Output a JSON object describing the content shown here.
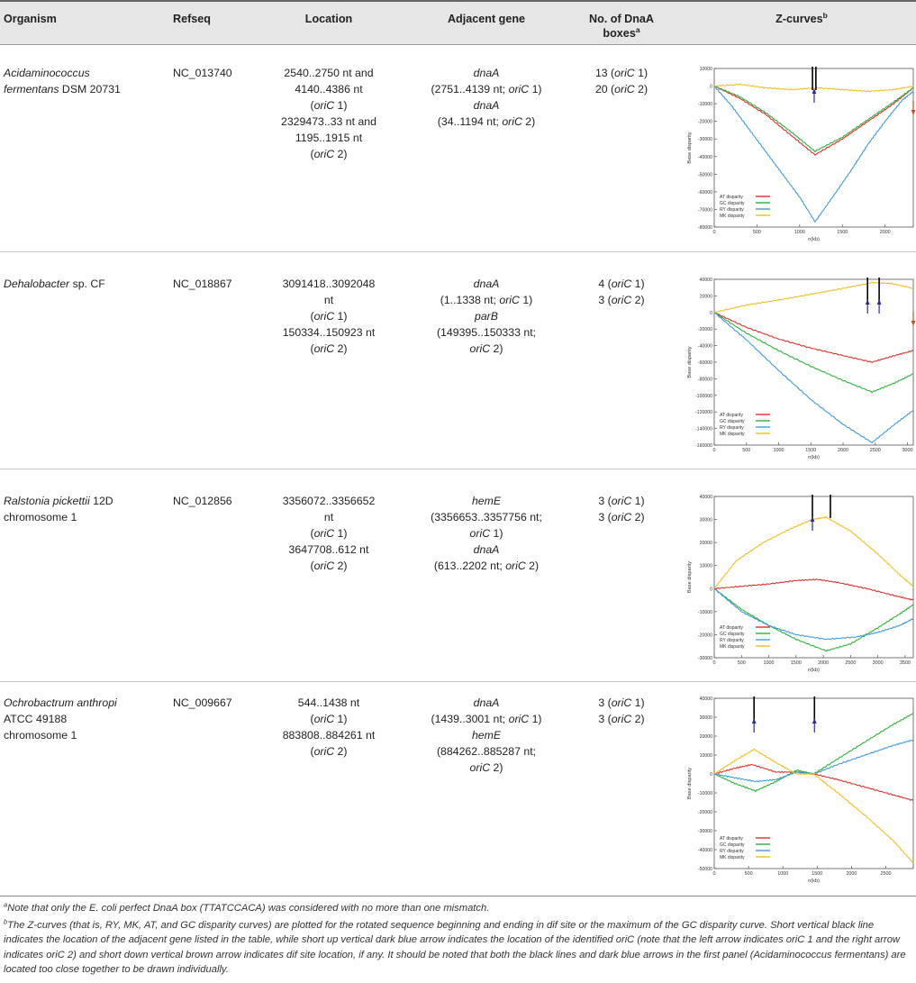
{
  "headers": {
    "organism": "Organism",
    "refseq": "Refseq",
    "location": "Location",
    "adjacent_gene": "Adjacent gene",
    "dnaa_line1": "No. of DnaA",
    "dnaa_line2": "boxes",
    "dnaa_sup": "a",
    "zcurves": "Z-curves",
    "zcurves_sup": "b"
  },
  "rows": [
    {
      "organism": [
        [
          {
            "t": "Acidaminococcus",
            "i": true
          }
        ],
        [
          {
            "t": "fermentans",
            "i": true
          },
          {
            "t": " DSM 20731"
          }
        ]
      ],
      "refseq": "NC_013740",
      "location": [
        [
          {
            "t": "2540..2750 nt and"
          }
        ],
        [
          {
            "t": "4140..4386 nt"
          }
        ],
        [
          {
            "t": "("
          },
          {
            "t": "oriC",
            "i": true
          },
          {
            "t": " 1)"
          }
        ],
        [
          {
            "t": "2329473..33 nt and"
          }
        ],
        [
          {
            "t": "1195..1915 nt"
          }
        ],
        [
          {
            "t": "("
          },
          {
            "t": "oriC",
            "i": true
          },
          {
            "t": " 2)"
          }
        ]
      ],
      "gene": [
        [
          {
            "t": "dnaA",
            "i": true
          }
        ],
        [
          {
            "t": "(2751..4139 nt; "
          },
          {
            "t": "oriC",
            "i": true
          },
          {
            "t": " 1)"
          }
        ],
        [
          {
            "t": "dnaA",
            "i": true
          }
        ],
        [
          {
            "t": "(34..1194 nt; "
          },
          {
            "t": "oriC",
            "i": true
          },
          {
            "t": " 2)"
          }
        ]
      ],
      "boxes": [
        [
          {
            "t": "13 ("
          },
          {
            "t": "oriC",
            "i": true
          },
          {
            "t": " 1)"
          }
        ],
        [
          {
            "t": "20 ("
          },
          {
            "t": "oriC",
            "i": true
          },
          {
            "t": " 2)"
          }
        ]
      ]
    },
    {
      "organism": [
        [
          {
            "t": "Dehalobacter",
            "i": true
          },
          {
            "t": " sp. CF"
          }
        ]
      ],
      "refseq": "NC_018867",
      "location": [
        [
          {
            "t": "3091418..3092048"
          }
        ],
        [
          {
            "t": "nt"
          }
        ],
        [
          {
            "t": "("
          },
          {
            "t": "oriC",
            "i": true
          },
          {
            "t": " 1)"
          }
        ],
        [
          {
            "t": "150334..150923 nt"
          }
        ],
        [
          {
            "t": "("
          },
          {
            "t": "oriC",
            "i": true
          },
          {
            "t": " 2)"
          }
        ]
      ],
      "gene": [
        [
          {
            "t": "dnaA",
            "i": true
          }
        ],
        [
          {
            "t": "(1..1338 nt; "
          },
          {
            "t": "oriC",
            "i": true
          },
          {
            "t": " 1)"
          }
        ],
        [
          {
            "t": "parB",
            "i": true
          }
        ],
        [
          {
            "t": "(149395..150333 nt;"
          }
        ],
        [
          {
            "t": "oriC",
            "i": true
          },
          {
            "t": " 2)"
          }
        ]
      ],
      "boxes": [
        [
          {
            "t": "4 ("
          },
          {
            "t": "oriC",
            "i": true
          },
          {
            "t": " 1)"
          }
        ],
        [
          {
            "t": "3 ("
          },
          {
            "t": "oriC",
            "i": true
          },
          {
            "t": " 2)"
          }
        ]
      ]
    },
    {
      "organism": [
        [
          {
            "t": "Ralstonia pickettii",
            "i": true
          },
          {
            "t": " 12D"
          }
        ],
        [
          {
            "t": "chromosome 1"
          }
        ]
      ],
      "refseq": "NC_012856",
      "location": [
        [
          {
            "t": "3356072..3356652"
          }
        ],
        [
          {
            "t": "nt"
          }
        ],
        [
          {
            "t": "("
          },
          {
            "t": "oriC",
            "i": true
          },
          {
            "t": " 1)"
          }
        ],
        [
          {
            "t": "3647708..612 nt"
          }
        ],
        [
          {
            "t": "("
          },
          {
            "t": "oriC",
            "i": true
          },
          {
            "t": " 2)"
          }
        ]
      ],
      "gene": [
        [
          {
            "t": "hemE",
            "i": true
          }
        ],
        [
          {
            "t": "(3356653..3357756 nt;"
          }
        ],
        [
          {
            "t": "oriC",
            "i": true
          },
          {
            "t": " 1)"
          }
        ],
        [
          {
            "t": "dnaA",
            "i": true
          }
        ],
        [
          {
            "t": "(613..2202 nt; "
          },
          {
            "t": "oriC",
            "i": true
          },
          {
            "t": " 2)"
          }
        ]
      ],
      "boxes": [
        [
          {
            "t": "3 ("
          },
          {
            "t": "oriC",
            "i": true
          },
          {
            "t": " 1)"
          }
        ],
        [
          {
            "t": "3 ("
          },
          {
            "t": "oriC",
            "i": true
          },
          {
            "t": " 2)"
          }
        ]
      ]
    },
    {
      "organism": [
        [
          {
            "t": "Ochrobactrum anthropi",
            "i": true
          }
        ],
        [
          {
            "t": "ATCC 49188"
          }
        ],
        [
          {
            "t": "chromosome 1"
          }
        ]
      ],
      "refseq": "NC_009667",
      "location": [
        [
          {
            "t": "544..1438 nt"
          }
        ],
        [
          {
            "t": "("
          },
          {
            "t": "oriC",
            "i": true
          },
          {
            "t": " 1)"
          }
        ],
        [
          {
            "t": "883808..884261 nt"
          }
        ],
        [
          {
            "t": "("
          },
          {
            "t": "oriC",
            "i": true
          },
          {
            "t": " 2)"
          }
        ]
      ],
      "gene": [
        [
          {
            "t": "dnaA",
            "i": true
          }
        ],
        [
          {
            "t": "(1439..3001 nt; "
          },
          {
            "t": "oriC",
            "i": true
          },
          {
            "t": " 1)"
          }
        ],
        [
          {
            "t": "hemE",
            "i": true
          }
        ],
        [
          {
            "t": "(884262..885287 nt;"
          }
        ],
        [
          {
            "t": "oriC",
            "i": true
          },
          {
            "t": " 2)"
          }
        ]
      ],
      "boxes": [
        [
          {
            "t": "3 ("
          },
          {
            "t": "oriC",
            "i": true
          },
          {
            "t": " 1)"
          }
        ],
        [
          {
            "t": "3 ("
          },
          {
            "t": "oriC",
            "i": true
          },
          {
            "t": " 2)"
          }
        ]
      ]
    }
  ],
  "footnotes": {
    "a_mark": "a",
    "a_text": "Note that only the E. coli perfect DnaA box (TTATCCACA) was considered with no more than one mismatch.",
    "b_mark": "b",
    "b_text": "The Z-curves (that is, RY, MK, AT, and GC disparity curves) are plotted for the rotated sequence beginning and ending in dif site or the maximum of the GC disparity curve. Short vertical black line indicates the location of the adjacent gene listed in the table, while short up vertical dark blue arrow indicates the location of the identified oriC (note that the left arrow indicates oriC 1 and the right arrow indicates oriC 2) and short down vertical brown arrow indicates dif site location, if any. It should be noted that both the black lines and dark blue arrows in the first panel (Acidaminococcus fermentans) are located too close together to be drawn individually."
  },
  "colors": {
    "at": "#e0302b",
    "gc": "#2cb33a",
    "ry": "#3d9be0",
    "mk": "#f0c020",
    "line": "#000000",
    "arrow_up": "#2c2ca0",
    "arrow_down": "#c0501e"
  },
  "chart_data": [
    {
      "type": "line",
      "xlabel": "n(kb)",
      "ylabel": "Base disparity",
      "xlim": [
        0,
        2330
      ],
      "ylim": [
        -80000,
        10000
      ],
      "xticks": [
        0,
        500,
        1000,
        1500,
        2000
      ],
      "yticks": [
        10000,
        0,
        -10000,
        -20000,
        -30000,
        -40000,
        -50000,
        -60000,
        -70000,
        -80000
      ],
      "legend": [
        "AT disparity",
        "GC disparity",
        "RY disparity",
        "MK disparity"
      ],
      "series": [
        {
          "name": "AT disparity",
          "x": [
            0,
            300,
            600,
            900,
            1180,
            1500,
            1800,
            2100,
            2330
          ],
          "y": [
            0,
            -7000,
            -16000,
            -28000,
            -39000,
            -30000,
            -20000,
            -10000,
            -1000
          ]
        },
        {
          "name": "GC disparity",
          "x": [
            0,
            300,
            600,
            900,
            1180,
            1500,
            1800,
            2100,
            2330
          ],
          "y": [
            0,
            -6000,
            -15000,
            -26000,
            -37000,
            -29000,
            -19000,
            -9000,
            -1000
          ]
        },
        {
          "name": "RY disparity",
          "x": [
            0,
            200,
            400,
            600,
            800,
            1000,
            1180,
            1400,
            1600,
            1800,
            2000,
            2200,
            2330
          ],
          "y": [
            0,
            -11000,
            -24000,
            -37000,
            -50000,
            -63000,
            -77000,
            -62000,
            -48000,
            -33000,
            -20000,
            -8000,
            -3000
          ]
        },
        {
          "name": "MK disparity",
          "x": [
            0,
            300,
            600,
            900,
            1200,
            1500,
            1800,
            2100,
            2330
          ],
          "y": [
            0,
            1000,
            -1000,
            -2000,
            -1000,
            -2000,
            -3000,
            -2000,
            0
          ]
        }
      ],
      "markers": {
        "lines": [
          1150,
          1190
        ],
        "arrows_up": [
          1170
        ],
        "arrows_down": [
          2330
        ]
      }
    },
    {
      "type": "line",
      "xlabel": "n(kb)",
      "ylabel": "Base disparity",
      "xlim": [
        0,
        3090
      ],
      "ylim": [
        -160000,
        40000
      ],
      "xticks": [
        0,
        500,
        1000,
        1500,
        2000,
        2500,
        3000
      ],
      "yticks": [
        40000,
        20000,
        0,
        -20000,
        -40000,
        -60000,
        -80000,
        -100000,
        -120000,
        -140000,
        -160000
      ],
      "legend": [
        "AT disparity",
        "GC disparity",
        "RY disparity",
        "MK disparity"
      ],
      "series": [
        {
          "name": "AT disparity",
          "x": [
            0,
            500,
            1000,
            1500,
            2000,
            2450,
            2800,
            3090
          ],
          "y": [
            0,
            -18000,
            -32000,
            -43000,
            -52000,
            -60000,
            -52000,
            -46000
          ]
        },
        {
          "name": "GC disparity",
          "x": [
            0,
            500,
            1000,
            1500,
            2000,
            2450,
            2800,
            3090
          ],
          "y": [
            0,
            -25000,
            -46000,
            -65000,
            -82000,
            -96000,
            -85000,
            -74000
          ]
        },
        {
          "name": "RY disparity",
          "x": [
            0,
            500,
            1000,
            1500,
            2000,
            2450,
            2800,
            3090
          ],
          "y": [
            0,
            -33000,
            -70000,
            -105000,
            -135000,
            -157000,
            -135000,
            -118000
          ]
        },
        {
          "name": "MK disparity",
          "x": [
            0,
            500,
            1000,
            1500,
            2000,
            2450,
            2750,
            3090
          ],
          "y": [
            0,
            9000,
            15000,
            22000,
            29000,
            36000,
            35000,
            29000
          ]
        }
      ],
      "markers": {
        "lines": [
          2380,
          2560
        ],
        "arrows_up": [
          2380,
          2560
        ],
        "arrows_down": [
          3090
        ]
      }
    },
    {
      "type": "line",
      "xlabel": "n(kb)",
      "ylabel": "Base disparity",
      "xlim": [
        0,
        3650
      ],
      "ylim": [
        -30000,
        40000
      ],
      "xticks": [
        0,
        500,
        1000,
        1500,
        2000,
        2500,
        3000,
        3500
      ],
      "yticks": [
        40000,
        30000,
        20000,
        10000,
        0,
        -10000,
        -20000,
        -30000
      ],
      "legend": [
        "AT disparity",
        "GC disparity",
        "RY disparity",
        "MK disparity"
      ],
      "series": [
        {
          "name": "AT disparity",
          "x": [
            0,
            500,
            1000,
            1500,
            1900,
            2300,
            2800,
            3300,
            3650
          ],
          "y": [
            0,
            1000,
            2000,
            3500,
            4000,
            2500,
            0,
            -3000,
            -5000
          ]
        },
        {
          "name": "GC disparity",
          "x": [
            0,
            500,
            1000,
            1500,
            2050,
            2500,
            3000,
            3400,
            3650
          ],
          "y": [
            0,
            -9000,
            -16000,
            -22000,
            -27000,
            -24000,
            -17000,
            -11000,
            -7000
          ]
        },
        {
          "name": "RY disparity",
          "x": [
            0,
            500,
            1000,
            1500,
            2050,
            2600,
            3000,
            3400,
            3650
          ],
          "y": [
            0,
            -10000,
            -16000,
            -20000,
            -22000,
            -21000,
            -19000,
            -16000,
            -13000
          ]
        },
        {
          "name": "MK disparity",
          "x": [
            0,
            400,
            900,
            1400,
            1800,
            2050,
            2500,
            3000,
            3400,
            3650
          ],
          "y": [
            0,
            12000,
            20000,
            26000,
            30000,
            31000,
            25000,
            15000,
            6000,
            1000
          ]
        }
      ],
      "markers": {
        "lines": [
          1800,
          2130
        ],
        "arrows_up": [
          1800
        ],
        "arrows_down": []
      }
    },
    {
      "type": "line",
      "xlabel": "n(kb)",
      "ylabel": "Base disparity",
      "xlim": [
        0,
        2900
      ],
      "ylim": [
        -50000,
        40000
      ],
      "xticks": [
        0,
        500,
        1000,
        1500,
        2000,
        2500
      ],
      "yticks": [
        40000,
        30000,
        20000,
        10000,
        0,
        -10000,
        -20000,
        -30000,
        -40000,
        -50000
      ],
      "legend": [
        "AT disparity",
        "GC disparity",
        "RY disparity",
        "MK disparity"
      ],
      "series": [
        {
          "name": "AT disparity",
          "x": [
            0,
            300,
            550,
            900,
            1200,
            1450,
            1800,
            2200,
            2600,
            2900
          ],
          "y": [
            0,
            3000,
            5000,
            1000,
            1000,
            0,
            -3000,
            -7000,
            -11000,
            -14000
          ]
        },
        {
          "name": "GC disparity",
          "x": [
            0,
            300,
            600,
            900,
            1200,
            1450,
            1800,
            2200,
            2600,
            2900
          ],
          "y": [
            0,
            -5000,
            -9000,
            -4000,
            2000,
            0,
            8000,
            17000,
            26000,
            32000
          ]
        },
        {
          "name": "RY disparity",
          "x": [
            0,
            300,
            600,
            900,
            1200,
            1450,
            1800,
            2200,
            2600,
            2900
          ],
          "y": [
            0,
            -2000,
            -4000,
            -3000,
            1000,
            0,
            5000,
            10000,
            15000,
            18000
          ]
        },
        {
          "name": "MK disparity",
          "x": [
            0,
            300,
            580,
            900,
            1200,
            1450,
            1800,
            2200,
            2600,
            2900
          ],
          "y": [
            0,
            7000,
            13000,
            6000,
            0,
            0,
            -10000,
            -22000,
            -35000,
            -47000
          ]
        }
      ],
      "markers": {
        "lines": [
          580,
          1460
        ],
        "arrows_up": [
          580,
          1460
        ],
        "arrows_down": []
      }
    }
  ]
}
